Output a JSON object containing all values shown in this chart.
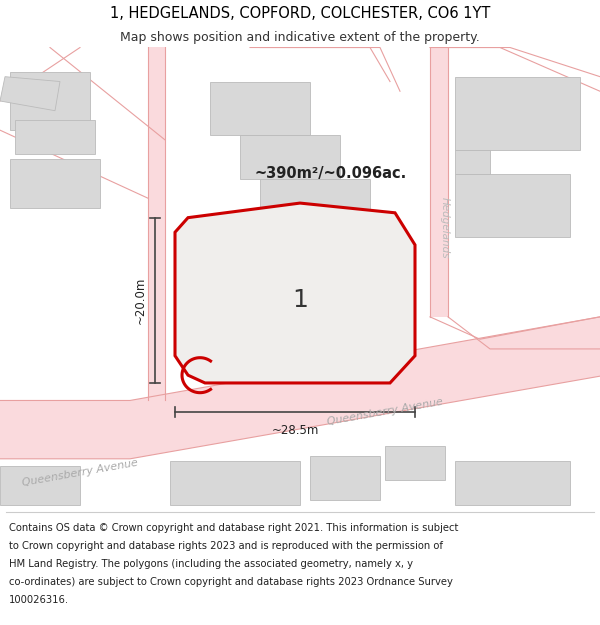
{
  "title_line1": "1, HEDGELANDS, COPFORD, COLCHESTER, CO6 1YT",
  "title_line2": "Map shows position and indicative extent of the property.",
  "footer_lines": [
    "Contains OS data © Crown copyright and database right 2021. This information is subject",
    "to Crown copyright and database rights 2023 and is reproduced with the permission of",
    "HM Land Registry. The polygons (including the associated geometry, namely x, y",
    "co-ordinates) are subject to Crown copyright and database rights 2023 Ordnance Survey",
    "100026316."
  ],
  "area_label": "~390m²/~0.096ac.",
  "plot_number": "1",
  "dim_width": "~28.5m",
  "dim_height": "~20.0m",
  "road_label_main1": "Queensberry Avenue",
  "road_label_main2": "Queensberry Avenue",
  "road_label_side": "Hedgelands",
  "bg_color": "#ffffff",
  "road_fill_color": "#fadadd",
  "road_edge_color": "#e8a0a0",
  "plot_fill": "#f0eeec",
  "plot_outline": "#cc0000",
  "building_fill": "#d8d8d8",
  "building_edge": "#bbbbbb",
  "title_fontsize": 10.5,
  "subtitle_fontsize": 9,
  "footer_fontsize": 7.2,
  "dim_line_color": "#444444",
  "road_text_color": "#aaaaaa",
  "area_text_color": "#222222",
  "plot_num_color": "#333333"
}
